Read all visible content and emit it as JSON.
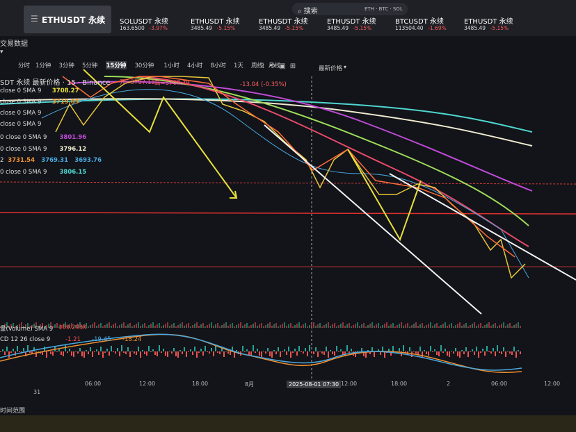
{
  "header": {
    "active_tab": "ETHUSDT 永续",
    "search": {
      "placeholder": "搜索",
      "hint": "ETH · BTC · SOL"
    },
    "tickers": [
      {
        "name": "SOLUSDT 永续",
        "price": "163.6500",
        "change": "-3.97%"
      },
      {
        "name": "ETHUSDT 永续",
        "price": "3485.49",
        "change": "-5.15%"
      },
      {
        "name": "ETHUSDT 永续",
        "price": "3485.49",
        "change": "-5.15%"
      },
      {
        "name": "ETHUSDT 永续",
        "price": "3485.49",
        "change": "-5.15%"
      },
      {
        "name": "BTCUSDT 永续",
        "price": "113504.40",
        "change": "-1.69%"
      },
      {
        "name": "ETHUSDT 永续",
        "price": "3485.49",
        "change": "-5.15%"
      }
    ]
  },
  "section_title": "交易数据",
  "toolbar": {
    "timeframes": [
      "分时",
      "1分钟",
      "3分钟",
      "5分钟",
      "15分钟",
      "30分钟",
      "1小时",
      "4小时",
      "8小时",
      "1天",
      "周线",
      "月线"
    ],
    "active": "15分钟",
    "price_mode": "最新价格"
  },
  "legend": {
    "symbol": "SDT 永续 最新价格 · 15 · Binance",
    "open": "开=3707.15",
    "high": "高=3707.79",
    "change": "-13.04 (-0.35%)",
    "indicators": [
      {
        "label": "close 0 SMA 9",
        "values": [
          "3708.27"
        ]
      },
      {
        "label": "close 0 SMA 9",
        "values": [
          "3719.89"
        ]
      },
      {
        "label": "close 0 SMA 9",
        "values": []
      },
      {
        "label": "close 0 SMA 9",
        "values": []
      },
      {
        "label": "0 close 0 SMA 9",
        "values": [
          "3801.96"
        ]
      },
      {
        "label": "0 close 0 SMA 9",
        "values": [
          "3796.12"
        ]
      },
      {
        "label": "2",
        "values": [
          "3731.54",
          "3769.31",
          "3693.76"
        ]
      },
      {
        "label": "0 close 0 SMA 9",
        "values": [
          "3806.15"
        ]
      }
    ]
  },
  "volume": {
    "label": "量(Volume) SMA 9",
    "value": "169.293K"
  },
  "macd": {
    "label": "CD 12 26 close 9",
    "values": [
      "-1.21",
      "-19.45",
      "-18.24"
    ]
  },
  "x_axis": [
    "31",
    "06:00",
    "12:00",
    "18:00",
    "8月",
    "2025-08-01  07:30",
    "12:00",
    "18:00",
    "2",
    "06:00",
    "12:00"
  ],
  "footer": "时间范围"
}
